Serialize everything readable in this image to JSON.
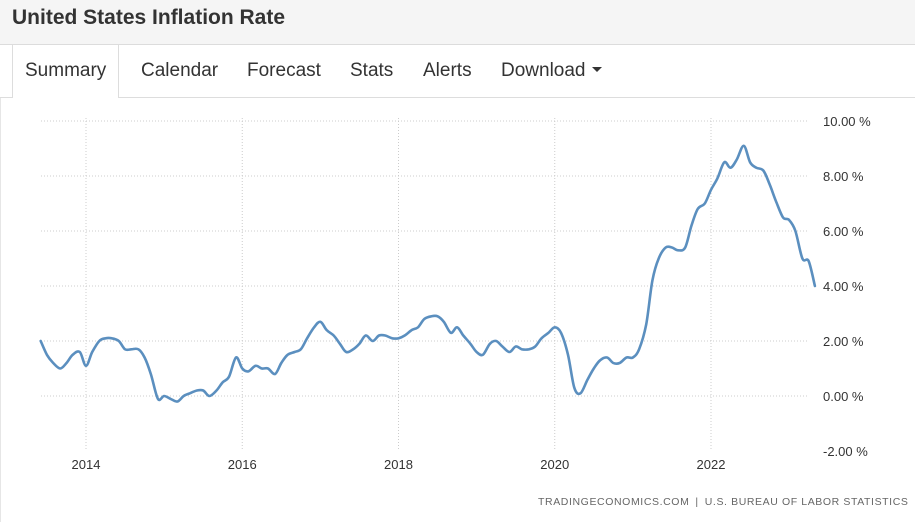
{
  "header": {
    "title": "United States Inflation Rate"
  },
  "tabs": [
    {
      "label": "Summary",
      "active": true
    },
    {
      "label": "Calendar"
    },
    {
      "label": "Forecast"
    },
    {
      "label": "Stats"
    },
    {
      "label": "Alerts"
    },
    {
      "label": "Download"
    }
  ],
  "source": {
    "provider": "TRADINGECONOMICS.COM",
    "separator": "|",
    "agency": "U.S. BUREAU OF LABOR STATISTICS"
  },
  "colors": {
    "line": "#5b8fbf",
    "grid": "#cccccc",
    "axis_text": "#333333"
  },
  "chart_data": {
    "type": "line",
    "title": "United States Inflation Rate",
    "xlabel": "",
    "ylabel": "",
    "x_range": [
      2013.42,
      2023.33
    ],
    "ylim": [
      -2,
      10
    ],
    "y_ticks": [
      10,
      8,
      6,
      4,
      2,
      0,
      -2
    ],
    "y_tick_labels": [
      "10.00 %",
      "8.00 %",
      "6.00 %",
      "4.00 %",
      "2.00 %",
      "0.00 %",
      "-2.00 %"
    ],
    "x_ticks": [
      2014,
      2016,
      2018,
      2020,
      2022
    ],
    "x_tick_labels": [
      "2014",
      "2016",
      "2018",
      "2020",
      "2022"
    ],
    "grid": true,
    "series": [
      {
        "name": "Inflation Rate",
        "unit": "%",
        "x": [
          2013.42,
          2013.5,
          2013.58,
          2013.67,
          2013.75,
          2013.83,
          2013.92,
          2014.0,
          2014.08,
          2014.17,
          2014.25,
          2014.33,
          2014.42,
          2014.5,
          2014.58,
          2014.67,
          2014.75,
          2014.83,
          2014.92,
          2015.0,
          2015.08,
          2015.17,
          2015.25,
          2015.33,
          2015.42,
          2015.5,
          2015.58,
          2015.67,
          2015.75,
          2015.83,
          2015.92,
          2016.0,
          2016.08,
          2016.17,
          2016.25,
          2016.33,
          2016.42,
          2016.5,
          2016.58,
          2016.67,
          2016.75,
          2016.83,
          2016.92,
          2017.0,
          2017.08,
          2017.17,
          2017.25,
          2017.33,
          2017.42,
          2017.5,
          2017.58,
          2017.67,
          2017.75,
          2017.83,
          2017.92,
          2018.0,
          2018.08,
          2018.17,
          2018.25,
          2018.33,
          2018.42,
          2018.5,
          2018.58,
          2018.67,
          2018.75,
          2018.83,
          2018.92,
          2019.0,
          2019.08,
          2019.17,
          2019.25,
          2019.33,
          2019.42,
          2019.5,
          2019.58,
          2019.67,
          2019.75,
          2019.83,
          2019.92,
          2020.0,
          2020.08,
          2020.17,
          2020.25,
          2020.33,
          2020.42,
          2020.5,
          2020.58,
          2020.67,
          2020.75,
          2020.83,
          2020.92,
          2021.0,
          2021.08,
          2021.17,
          2021.25,
          2021.33,
          2021.42,
          2021.5,
          2021.58,
          2021.67,
          2021.75,
          2021.83,
          2021.92,
          2022.0,
          2022.08,
          2022.17,
          2022.25,
          2022.33,
          2022.42,
          2022.5,
          2022.58,
          2022.67,
          2022.75,
          2022.83,
          2022.92,
          2023.0,
          2023.08,
          2023.17,
          2023.25,
          2023.33
        ],
        "values": [
          2.0,
          1.5,
          1.2,
          1.0,
          1.2,
          1.5,
          1.6,
          1.1,
          1.6,
          2.0,
          2.1,
          2.1,
          2.0,
          1.7,
          1.7,
          1.7,
          1.4,
          0.8,
          -0.1,
          0.0,
          -0.1,
          -0.2,
          0.0,
          0.1,
          0.2,
          0.2,
          0.0,
          0.2,
          0.5,
          0.7,
          1.4,
          1.0,
          0.9,
          1.1,
          1.0,
          1.0,
          0.8,
          1.2,
          1.5,
          1.6,
          1.7,
          2.1,
          2.5,
          2.7,
          2.4,
          2.2,
          1.9,
          1.6,
          1.7,
          1.9,
          2.2,
          2.0,
          2.2,
          2.2,
          2.1,
          2.1,
          2.2,
          2.4,
          2.5,
          2.8,
          2.9,
          2.9,
          2.7,
          2.3,
          2.5,
          2.2,
          1.9,
          1.6,
          1.5,
          1.9,
          2.0,
          1.8,
          1.6,
          1.8,
          1.7,
          1.7,
          1.8,
          2.1,
          2.3,
          2.5,
          2.3,
          1.5,
          0.3,
          0.1,
          0.6,
          1.0,
          1.3,
          1.4,
          1.2,
          1.2,
          1.4,
          1.4,
          1.7,
          2.6,
          4.2,
          5.0,
          5.4,
          5.4,
          5.3,
          5.4,
          6.2,
          6.8,
          7.0,
          7.5,
          7.9,
          8.5,
          8.3,
          8.6,
          9.1,
          8.5,
          8.3,
          8.2,
          7.7,
          7.1,
          6.5,
          6.4,
          6.0,
          5.0,
          4.9,
          4.0
        ]
      }
    ]
  }
}
